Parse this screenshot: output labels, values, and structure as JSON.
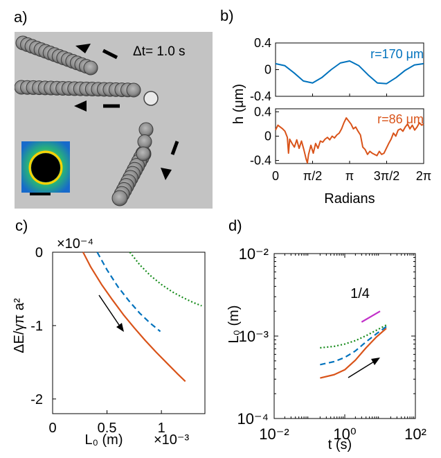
{
  "panel_labels": {
    "a": "a)",
    "b": "b)",
    "c": "c)",
    "d": "d)"
  },
  "photo": {
    "dt_label": "Δt= 1.0 s"
  },
  "colors": {
    "orange": "#d95319",
    "blue": "#0072bd",
    "green": "#138a18",
    "magenta": "#c230c9",
    "axis": "#000000"
  },
  "chart_data": [
    {
      "id": "b-top",
      "type": "line",
      "annotation": "r=170 μm",
      "ylabel": "h (μm)",
      "xlim": [
        0,
        6.2832
      ],
      "ylim": [
        -0.4,
        0.4
      ],
      "yticks": [
        "0.4",
        "0",
        "-0.4"
      ],
      "series": [
        {
          "color": "#0072bd",
          "x": [
            0,
            0.39,
            0.79,
            1.18,
            1.57,
            1.96,
            2.36,
            2.75,
            3.14,
            3.53,
            3.93,
            4.32,
            4.71,
            5.11,
            5.5,
            5.89,
            6.28
          ],
          "y": [
            0.09,
            0.06,
            -0.05,
            -0.17,
            -0.2,
            -0.12,
            0.0,
            0.1,
            0.13,
            0.06,
            -0.08,
            -0.2,
            -0.21,
            -0.12,
            -0.01,
            0.07,
            0.09
          ]
        }
      ]
    },
    {
      "id": "b-bottom",
      "type": "line",
      "annotation": "r=86 μm",
      "xlabel": "Radians",
      "xlim": [
        0,
        6.2832
      ],
      "ylim": [
        -0.45,
        0.45
      ],
      "yticks": [
        "0.4",
        "0",
        "-0.4"
      ],
      "xticks": [
        "0",
        "π/2",
        "π",
        "3π/2",
        "2π"
      ],
      "series": [
        {
          "color": "#d95319",
          "x": [
            0,
            0.1,
            0.2,
            0.3,
            0.4,
            0.5,
            0.55,
            0.6,
            0.7,
            0.8,
            0.9,
            1.0,
            1.1,
            1.2,
            1.3,
            1.35,
            1.4,
            1.5,
            1.6,
            1.7,
            1.8,
            1.9,
            2.0,
            2.1,
            2.2,
            2.3,
            2.4,
            2.5,
            2.6,
            2.7,
            2.8,
            2.9,
            3.0,
            3.1,
            3.2,
            3.3,
            3.4,
            3.5,
            3.6,
            3.7,
            3.8,
            3.9,
            4.0,
            4.1,
            4.2,
            4.3,
            4.4,
            4.5,
            4.6,
            4.7,
            4.8,
            4.9,
            5.0,
            5.1,
            5.2,
            5.3,
            5.4,
            5.5,
            5.6,
            5.7,
            5.8,
            5.9,
            6.0,
            6.1,
            6.2,
            6.28
          ],
          "y": [
            0.1,
            0.18,
            0.15,
            0.12,
            0.08,
            -0.02,
            -0.28,
            -0.05,
            -0.12,
            -0.18,
            -0.06,
            -0.2,
            -0.08,
            -0.22,
            -0.38,
            -0.44,
            -0.3,
            -0.15,
            -0.28,
            -0.12,
            -0.2,
            -0.08,
            -0.1,
            -0.05,
            -0.02,
            -0.06,
            0.0,
            -0.03,
            0.02,
            0.05,
            0.12,
            0.22,
            0.3,
            0.25,
            0.2,
            0.12,
            0.15,
            0.08,
            0.02,
            -0.18,
            -0.22,
            -0.3,
            -0.25,
            -0.28,
            -0.3,
            -0.32,
            -0.25,
            -0.3,
            -0.28,
            -0.2,
            -0.12,
            -0.05,
            0.05,
            0.0,
            0.1,
            0.12,
            0.08,
            0.15,
            0.2,
            0.12,
            0.18,
            0.1,
            0.15,
            0.22,
            0.18,
            0.2
          ]
        }
      ]
    },
    {
      "id": "c",
      "type": "line",
      "ylabel": "ΔE/γπ a²",
      "xlabel": "L₀ (m)",
      "x_multiplier": "×10⁻³",
      "y_multiplier": "×10⁻⁴",
      "xlim": [
        0,
        1.4
      ],
      "ylim": [
        -2.2,
        0
      ],
      "xticks": [
        "0",
        "0.5",
        "1"
      ],
      "yticks": [
        "0",
        "-1",
        "-2"
      ],
      "series": [
        {
          "style": "solid",
          "color": "#d95319",
          "x": [
            0.28,
            0.35,
            0.45,
            0.55,
            0.65,
            0.75,
            0.85,
            0.95,
            1.05,
            1.15,
            1.22
          ],
          "y": [
            0.0,
            -0.2,
            -0.44,
            -0.65,
            -0.85,
            -1.03,
            -1.2,
            -1.36,
            -1.51,
            -1.66,
            -1.76
          ]
        },
        {
          "style": "dashed",
          "color": "#0072bd",
          "x": [
            0.41,
            0.5,
            0.6,
            0.7,
            0.8,
            0.9,
            0.99
          ],
          "y": [
            0.0,
            -0.24,
            -0.47,
            -0.66,
            -0.83,
            -0.97,
            -1.08
          ]
        },
        {
          "style": "dotted",
          "color": "#138a18",
          "x": [
            0.71,
            0.8,
            0.9,
            1.0,
            1.1,
            1.2,
            1.3,
            1.37
          ],
          "y": [
            0.0,
            -0.17,
            -0.32,
            -0.44,
            -0.54,
            -0.62,
            -0.69,
            -0.73
          ]
        }
      ]
    },
    {
      "id": "d",
      "type": "line",
      "scale": "log-log",
      "ylabel": "L₀ (m)",
      "xlabel": "t (s)",
      "slope_label": "1/4",
      "xlim": [
        0.01,
        100
      ],
      "ylim": [
        0.0001,
        0.01
      ],
      "xticks": [
        "10⁻²",
        "10⁰",
        "10²"
      ],
      "yticks": [
        "10⁻²",
        "10⁻³",
        "10⁻⁴"
      ],
      "series": [
        {
          "style": "solid",
          "color": "#d95319",
          "x": [
            0.2,
            0.5,
            1.0,
            2.0,
            4.0,
            8.0,
            15.0
          ],
          "y": [
            0.00031,
            0.00034,
            0.00039,
            0.00051,
            0.00072,
            0.00098,
            0.00124
          ]
        },
        {
          "style": "dashed",
          "color": "#0072bd",
          "x": [
            0.2,
            0.5,
            1.0,
            2.0,
            4.0,
            8.0,
            15.0
          ],
          "y": [
            0.00045,
            0.00049,
            0.00055,
            0.00066,
            0.00085,
            0.00107,
            0.0013
          ]
        },
        {
          "style": "dotted",
          "color": "#138a18",
          "x": [
            0.2,
            0.5,
            1.0,
            2.0,
            4.0,
            8.0,
            15.0
          ],
          "y": [
            0.00072,
            0.00075,
            0.0008,
            0.00088,
            0.00101,
            0.00118,
            0.00136
          ]
        },
        {
          "style": "solid",
          "color": "#c230c9",
          "x": [
            3.0,
            10.0
          ],
          "y": [
            0.00148,
            0.002
          ]
        }
      ]
    }
  ]
}
